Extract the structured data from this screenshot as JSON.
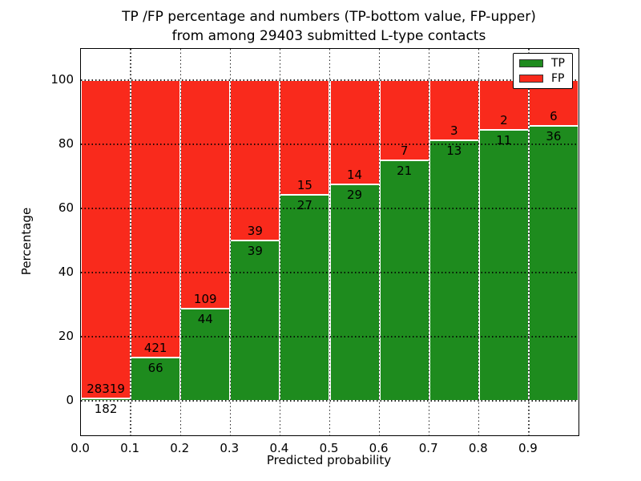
{
  "chart_data": {
    "type": "bar",
    "stacked": true,
    "title_line1": "TP /FP percentage and numbers (TP-bottom value, FP-upper)",
    "title_line2": "from among 29403 submitted L-type contacts",
    "xlabel": "Predicted probability",
    "ylabel": "Percentage",
    "x_tick_labels": [
      "0.0",
      "0.1",
      "0.2",
      "0.3",
      "0.4",
      "0.5",
      "0.6",
      "0.7",
      "0.8",
      "0.9"
    ],
    "x_tick_values": [
      0.0,
      0.1,
      0.2,
      0.3,
      0.4,
      0.5,
      0.6,
      0.7,
      0.8,
      0.9
    ],
    "y_tick_values": [
      0,
      20,
      40,
      60,
      80,
      100
    ],
    "xlim": [
      0.0,
      1.0
    ],
    "ylim": [
      -10.75,
      109.75
    ],
    "bar_width": 0.1,
    "grid": true,
    "total_contacts": 29403,
    "legend": {
      "position": "upper right",
      "entries": [
        {
          "label": "TP",
          "color": "#1e8b1e"
        },
        {
          "label": "FP",
          "color": "#f92a1c"
        }
      ]
    },
    "bins": [
      {
        "x_start": 0.0,
        "x_end": 0.1,
        "tp": 182,
        "fp": 28319
      },
      {
        "x_start": 0.1,
        "x_end": 0.2,
        "tp": 66,
        "fp": 421
      },
      {
        "x_start": 0.2,
        "x_end": 0.3,
        "tp": 44,
        "fp": 109
      },
      {
        "x_start": 0.3,
        "x_end": 0.4,
        "tp": 39,
        "fp": 39
      },
      {
        "x_start": 0.4,
        "x_end": 0.5,
        "tp": 27,
        "fp": 15
      },
      {
        "x_start": 0.5,
        "x_end": 0.6,
        "tp": 29,
        "fp": 14
      },
      {
        "x_start": 0.6,
        "x_end": 0.7,
        "tp": 21,
        "fp": 7
      },
      {
        "x_start": 0.7,
        "x_end": 0.8,
        "tp": 13,
        "fp": 3
      },
      {
        "x_start": 0.8,
        "x_end": 0.9,
        "tp": 11,
        "fp": 2
      },
      {
        "x_start": 0.9,
        "x_end": 1.0,
        "tp": 36,
        "fp": 6
      }
    ],
    "colors": {
      "tp": "#1e8b1e",
      "fp": "#f92a1c",
      "grid": "#000000",
      "bar_edge": "#ffffff",
      "frame": "#000000",
      "background": "#ffffff",
      "text": "#000000"
    }
  }
}
